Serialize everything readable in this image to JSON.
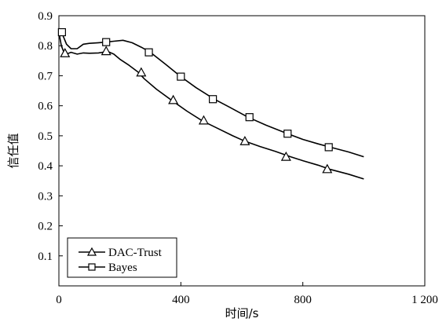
{
  "chart_data": {
    "type": "line",
    "title": "",
    "xlabel": "时间/s",
    "ylabel": "信任值",
    "xlim": [
      0,
      1200
    ],
    "ylim": [
      0,
      0.9
    ],
    "xticks": [
      0,
      400,
      800,
      1200
    ],
    "xtick_labels": [
      "0",
      "400",
      "800",
      "1 200"
    ],
    "yticks": [
      0.1,
      0.2,
      0.3,
      0.4,
      0.5,
      0.6,
      0.7,
      0.8,
      0.9
    ],
    "ytick_labels": [
      "0.1",
      "0.2",
      "0.3",
      "0.4",
      "0.5",
      "0.6",
      "0.7",
      "0.8",
      "0.9"
    ],
    "grid": false,
    "legend_position": "bottom-left",
    "series": [
      {
        "name": "DAC-Trust",
        "marker": "triangle",
        "x": [
          0,
          8,
          15,
          25,
          40,
          60,
          80,
          100,
          130,
          160,
          180,
          200,
          230,
          260,
          280,
          320,
          370,
          420,
          470,
          520,
          570,
          610,
          660,
          710,
          760,
          800,
          850,
          890,
          950,
          1000
        ],
        "y": [
          0.845,
          0.8,
          0.782,
          0.772,
          0.778,
          0.772,
          0.776,
          0.775,
          0.776,
          0.781,
          0.772,
          0.755,
          0.735,
          0.712,
          0.69,
          0.655,
          0.618,
          0.582,
          0.55,
          0.525,
          0.5,
          0.482,
          0.464,
          0.448,
          0.43,
          0.417,
          0.402,
          0.388,
          0.372,
          0.356
        ],
        "marker_x": [
          20,
          155,
          270,
          375,
          475,
          610,
          745,
          880
        ],
        "marker_y": [
          0.775,
          0.782,
          0.711,
          0.619,
          0.551,
          0.482,
          0.43,
          0.389
        ]
      },
      {
        "name": "Bayes",
        "marker": "square",
        "x": [
          0,
          10,
          15,
          25,
          40,
          60,
          80,
          100,
          130,
          155,
          180,
          210,
          240,
          270,
          300,
          350,
          400,
          450,
          510,
          560,
          620,
          680,
          750,
          800,
          850,
          890,
          950,
          1000
        ],
        "y": [
          0.845,
          0.843,
          0.83,
          0.805,
          0.79,
          0.79,
          0.805,
          0.808,
          0.81,
          0.812,
          0.815,
          0.818,
          0.81,
          0.795,
          0.778,
          0.738,
          0.697,
          0.66,
          0.622,
          0.595,
          0.562,
          0.535,
          0.507,
          0.488,
          0.473,
          0.462,
          0.446,
          0.43
        ],
        "marker_x": [
          10,
          155,
          295,
          400,
          505,
          625,
          750,
          885
        ],
        "marker_y": [
          0.845,
          0.812,
          0.778,
          0.697,
          0.622,
          0.562,
          0.507,
          0.462
        ]
      }
    ]
  },
  "colors": {
    "line": "#000000",
    "background": "#ffffff"
  }
}
